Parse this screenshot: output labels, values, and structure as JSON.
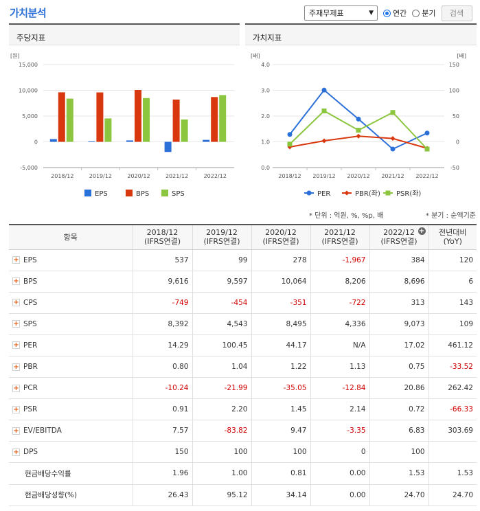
{
  "header": {
    "title": "가치분석",
    "select_value": "주재무제표",
    "radio_annual": "연간",
    "radio_quarter": "분기",
    "search_label": "검색"
  },
  "panels": {
    "left_title": "주당지표",
    "right_title": "가치지표"
  },
  "notes": {
    "unit": "* 단위 : 억원, %, %p, 배",
    "quarter": "* 분기 : 순액기준"
  },
  "colors": {
    "eps": "#2b6fd8",
    "bps": "#d9380f",
    "sps": "#8cc63f",
    "per": "#2b6fd8",
    "pbr": "#d9380f",
    "psr": "#8cc63f"
  },
  "chart_data": [
    {
      "type": "bar",
      "title": "주당지표",
      "unit_label": "[원]",
      "categories": [
        "2018/12",
        "2019/12",
        "2020/12",
        "2021/12",
        "2022/12"
      ],
      "series": [
        {
          "name": "EPS",
          "values": [
            537,
            99,
            278,
            -1967,
            384
          ]
        },
        {
          "name": "BPS",
          "values": [
            9616,
            9597,
            10064,
            8206,
            8696
          ]
        },
        {
          "name": "SPS",
          "values": [
            8392,
            4543,
            8495,
            4336,
            9073
          ]
        }
      ],
      "ylim": [
        -5000,
        15000
      ],
      "yticks": [
        "15,000",
        "10,000",
        "5,000",
        "0",
        "-5,000"
      ],
      "legend": "bottom"
    },
    {
      "type": "line",
      "title": "가치지표",
      "unit_left": "[배]",
      "unit_right": "[배]",
      "categories": [
        "2018/12",
        "2019/12",
        "2020/12",
        "2021/12",
        "2022/12"
      ],
      "series": [
        {
          "name": "PER",
          "axis": "right",
          "values": [
            14.29,
            100.45,
            44.17,
            -14,
            17.02
          ]
        },
        {
          "name": "PBR(좌)",
          "axis": "left",
          "values": [
            0.8,
            1.04,
            1.22,
            1.13,
            0.75
          ]
        },
        {
          "name": "PSR(좌)",
          "axis": "left",
          "values": [
            0.91,
            2.2,
            1.45,
            2.14,
            0.72
          ]
        }
      ],
      "ylim_left": [
        0,
        4
      ],
      "ylim_right": [
        -50,
        150
      ],
      "yticks_left": [
        "4.0",
        "3.0",
        "2.0",
        "1.0",
        "0.0"
      ],
      "yticks_right": [
        "150",
        "100",
        "50",
        "0",
        "-50"
      ],
      "legend": "bottom"
    }
  ],
  "table": {
    "col_item": "항목",
    "columns": [
      {
        "year": "2018/12",
        "basis": "(IFRS연결)"
      },
      {
        "year": "2019/12",
        "basis": "(IFRS연결)"
      },
      {
        "year": "2020/12",
        "basis": "(IFRS연결)"
      },
      {
        "year": "2021/12",
        "basis": "(IFRS연결)"
      },
      {
        "year": "2022/12",
        "basis": "(IFRS연결)"
      }
    ],
    "col_yoy": "전년대비",
    "col_yoy_sub": "(YoY)",
    "rows": [
      {
        "label": "EPS",
        "expand": true,
        "values": [
          "537",
          "99",
          "278",
          "-1,967",
          "384",
          "120"
        ]
      },
      {
        "label": "BPS",
        "expand": true,
        "values": [
          "9,616",
          "9,597",
          "10,064",
          "8,206",
          "8,696",
          "6"
        ]
      },
      {
        "label": "CPS",
        "expand": true,
        "values": [
          "-749",
          "-454",
          "-351",
          "-722",
          "313",
          "143"
        ]
      },
      {
        "label": "SPS",
        "expand": true,
        "values": [
          "8,392",
          "4,543",
          "8,495",
          "4,336",
          "9,073",
          "109"
        ]
      },
      {
        "label": "PER",
        "expand": true,
        "values": [
          "14.29",
          "100.45",
          "44.17",
          "N/A",
          "17.02",
          "461.12"
        ]
      },
      {
        "label": "PBR",
        "expand": true,
        "values": [
          "0.80",
          "1.04",
          "1.22",
          "1.13",
          "0.75",
          "-33.52"
        ]
      },
      {
        "label": "PCR",
        "expand": true,
        "values": [
          "-10.24",
          "-21.99",
          "-35.05",
          "-12.84",
          "20.86",
          "262.42"
        ]
      },
      {
        "label": "PSR",
        "expand": true,
        "values": [
          "0.91",
          "2.20",
          "1.45",
          "2.14",
          "0.72",
          "-66.33"
        ]
      },
      {
        "label": "EV/EBITDA",
        "expand": true,
        "values": [
          "7.57",
          "-83.82",
          "9.47",
          "-3.35",
          "6.83",
          "303.69"
        ]
      },
      {
        "label": "DPS",
        "expand": true,
        "values": [
          "150",
          "100",
          "100",
          "0",
          "100",
          ""
        ]
      },
      {
        "label": "현금배당수익률",
        "expand": false,
        "values": [
          "1.96",
          "1.00",
          "0.81",
          "0.00",
          "1.53",
          "1.53"
        ]
      },
      {
        "label": "현금배당성향(%)",
        "expand": false,
        "values": [
          "26.43",
          "95.12",
          "34.14",
          "0.00",
          "24.70",
          "24.70"
        ]
      }
    ]
  }
}
